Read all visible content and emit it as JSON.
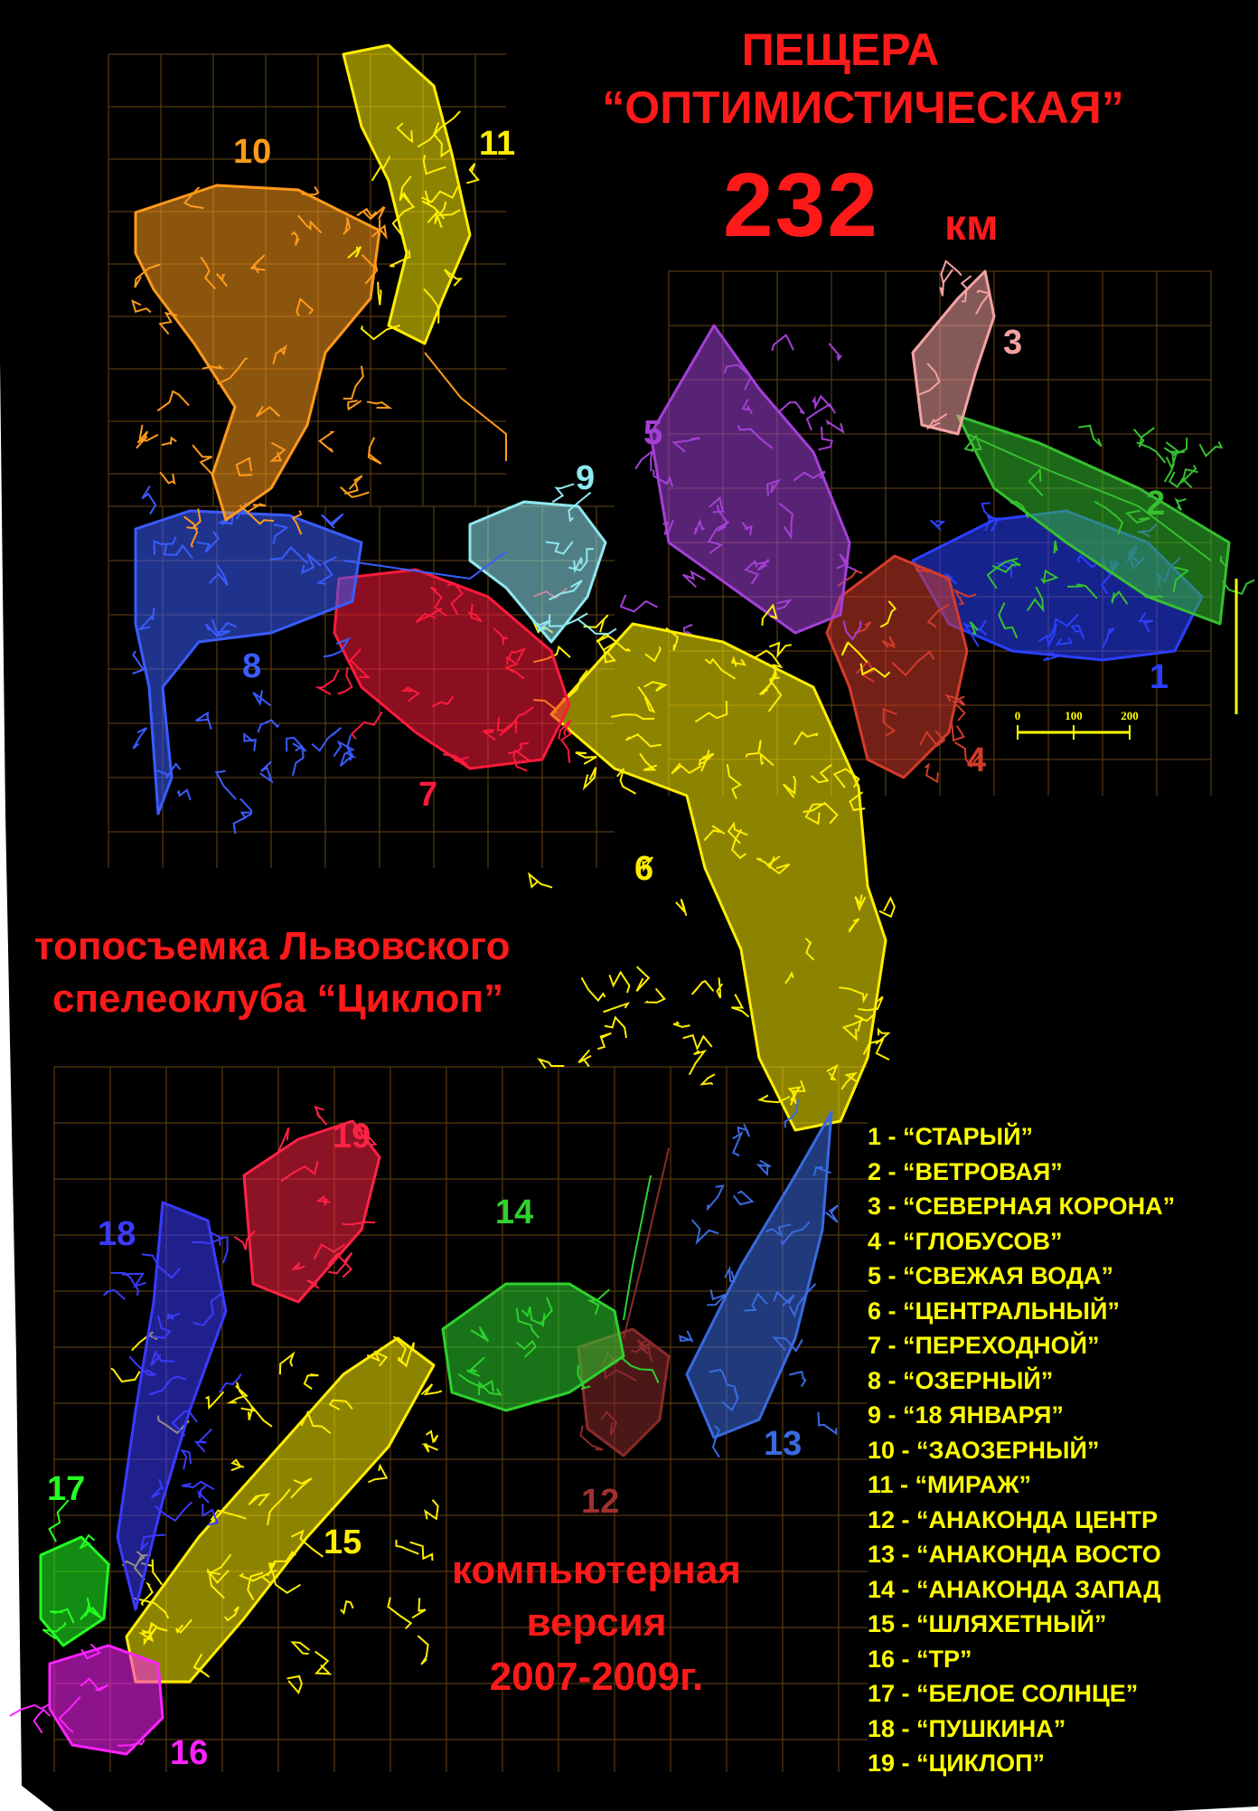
{
  "title": {
    "line1": "ПЕЩЕРА",
    "line2": "“ОПТИМИСТИЧЕСКАЯ”",
    "length_value": "232",
    "length_unit": "км"
  },
  "credit": {
    "line1": "топосъемка Львовского",
    "line2": "спелеоклуба “Циклоп”"
  },
  "version": {
    "line1": "компьютерная",
    "line2": "версия",
    "line3": "2007-2009г."
  },
  "scale_bar": {
    "ticks": [
      "0",
      "100",
      "200"
    ],
    "color": "#ffff00"
  },
  "colors": {
    "background": "#000000",
    "title_red": "#ff1a1a",
    "grid": "#8a5a1a",
    "legend_text": "#ffff00"
  },
  "regions": [
    {
      "number": "1",
      "color": "#2a3fff"
    },
    {
      "number": "2",
      "color": "#35c030"
    },
    {
      "number": "3",
      "color": "#f4a2a2"
    },
    {
      "number": "4",
      "color": "#d23b2a"
    },
    {
      "number": "5",
      "color": "#a340d6"
    },
    {
      "number": "6",
      "color": "#ffee00"
    },
    {
      "number": "7",
      "color": "#ff1a3c"
    },
    {
      "number": "8",
      "color": "#3a5cff"
    },
    {
      "number": "9",
      "color": "#8fe8f0"
    },
    {
      "number": "10",
      "color": "#ff9a1a"
    },
    {
      "number": "11",
      "color": "#ffee00"
    },
    {
      "number": "12",
      "color": "#8a2a2a"
    },
    {
      "number": "13",
      "color": "#3a6ae0"
    },
    {
      "number": "14",
      "color": "#2ed12e"
    },
    {
      "number": "15",
      "color": "#ffee00"
    },
    {
      "number": "16",
      "color": "#ff22ff"
    },
    {
      "number": "17",
      "color": "#22ff22"
    },
    {
      "number": "18",
      "color": "#3a3aff"
    },
    {
      "number": "19",
      "color": "#ff2244"
    }
  ],
  "legend": [
    "1 - “СТАРЫЙ”",
    "2 - “ВЕТРОВАЯ”",
    "3 - “СЕВЕРНАЯ КОРОНА”",
    "4 - “ГЛОБУСОВ”",
    "5 - “СВЕЖАЯ ВОДА”",
    "6 - “ЦЕНТРАЛЬНЫЙ”",
    "7 - “ПЕРЕХОДНОЙ”",
    "8 - “ОЗЕРНЫЙ”",
    "9 - “18 ЯНВАРЯ”",
    "10 - “ЗАОЗЕРНЫЙ”",
    "11 - “МИРАЖ”",
    "12 - “АНАКОНДА ЦЕНТР",
    "13 - “АНАКОНДА ВОСТО",
    "14 - “АНАКОНДА ЗАПАД",
    "15 - “ШЛЯХЕТНЫЙ”",
    "16 - “ТР”",
    "17 - “БЕЛОЕ СОЛНЦЕ”",
    "18 - “ПУШКИНА”",
    "19 - “ЦИКЛОП”"
  ]
}
